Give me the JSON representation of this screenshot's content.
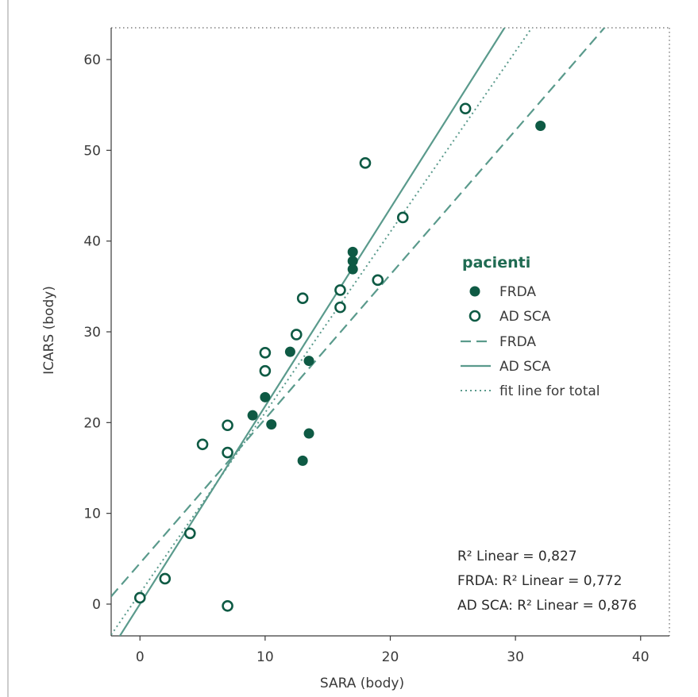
{
  "colors": {
    "marker": "#0e5a44",
    "line": "#5a9a8c",
    "axis": "#3a3a3a",
    "legend_title": "#1f6b52"
  },
  "chart_data": {
    "type": "scatter",
    "xlabel": "SARA (body)",
    "ylabel": "ICARS (body)",
    "xlim": [
      -2.3,
      42.3
    ],
    "ylim": [
      -3.5,
      63.5
    ],
    "xticks": [
      0,
      10,
      20,
      30,
      40
    ],
    "yticks": [
      0,
      10,
      20,
      30,
      40,
      50,
      60
    ],
    "grid": false,
    "legend": {
      "title": "pacienti",
      "placement": "right",
      "entries": [
        {
          "label": "FRDA",
          "kind": "filled-circle"
        },
        {
          "label": "AD SCA",
          "kind": "open-circle"
        },
        {
          "label": "FRDA",
          "kind": "dashed-line"
        },
        {
          "label": "AD SCA",
          "kind": "solid-line"
        },
        {
          "label": "fit line for total",
          "kind": "dotted-line"
        }
      ]
    },
    "series": [
      {
        "name": "FRDA",
        "marker": "filled-circle",
        "points": [
          [
            9,
            20.8
          ],
          [
            10,
            22.8
          ],
          [
            10.5,
            19.8
          ],
          [
            12,
            27.8
          ],
          [
            13,
            15.8
          ],
          [
            13.5,
            18.8
          ],
          [
            13.5,
            26.8
          ],
          [
            17,
            36.9
          ],
          [
            17,
            37.8
          ],
          [
            17,
            38.8
          ],
          [
            32,
            52.7
          ]
        ]
      },
      {
        "name": "AD SCA",
        "marker": "open-circle",
        "points": [
          [
            0,
            0.7
          ],
          [
            2,
            2.8
          ],
          [
            4,
            7.8
          ],
          [
            5,
            17.6
          ],
          [
            7,
            -0.2
          ],
          [
            7,
            16.7
          ],
          [
            7,
            19.7
          ],
          [
            10,
            25.7
          ],
          [
            10,
            27.7
          ],
          [
            12.5,
            29.7
          ],
          [
            13,
            33.7
          ],
          [
            16,
            32.7
          ],
          [
            16,
            34.6
          ],
          [
            18,
            48.6
          ],
          [
            19,
            35.7
          ],
          [
            21,
            42.6
          ],
          [
            26,
            54.6
          ]
        ]
      }
    ],
    "fit_lines": [
      {
        "name": "FRDA",
        "style": "dashed",
        "intercept": 4.5,
        "slope": 1.59
      },
      {
        "name": "AD SCA",
        "style": "solid",
        "intercept": 0.0,
        "slope": 2.18
      },
      {
        "name": "fit line for total",
        "style": "dotted",
        "intercept": 1.2,
        "slope": 1.99
      }
    ],
    "annotations": [
      "R² Linear = 0,827",
      "FRDA: R² Linear = 0,772",
      "AD SCA: R² Linear = 0,876"
    ]
  }
}
